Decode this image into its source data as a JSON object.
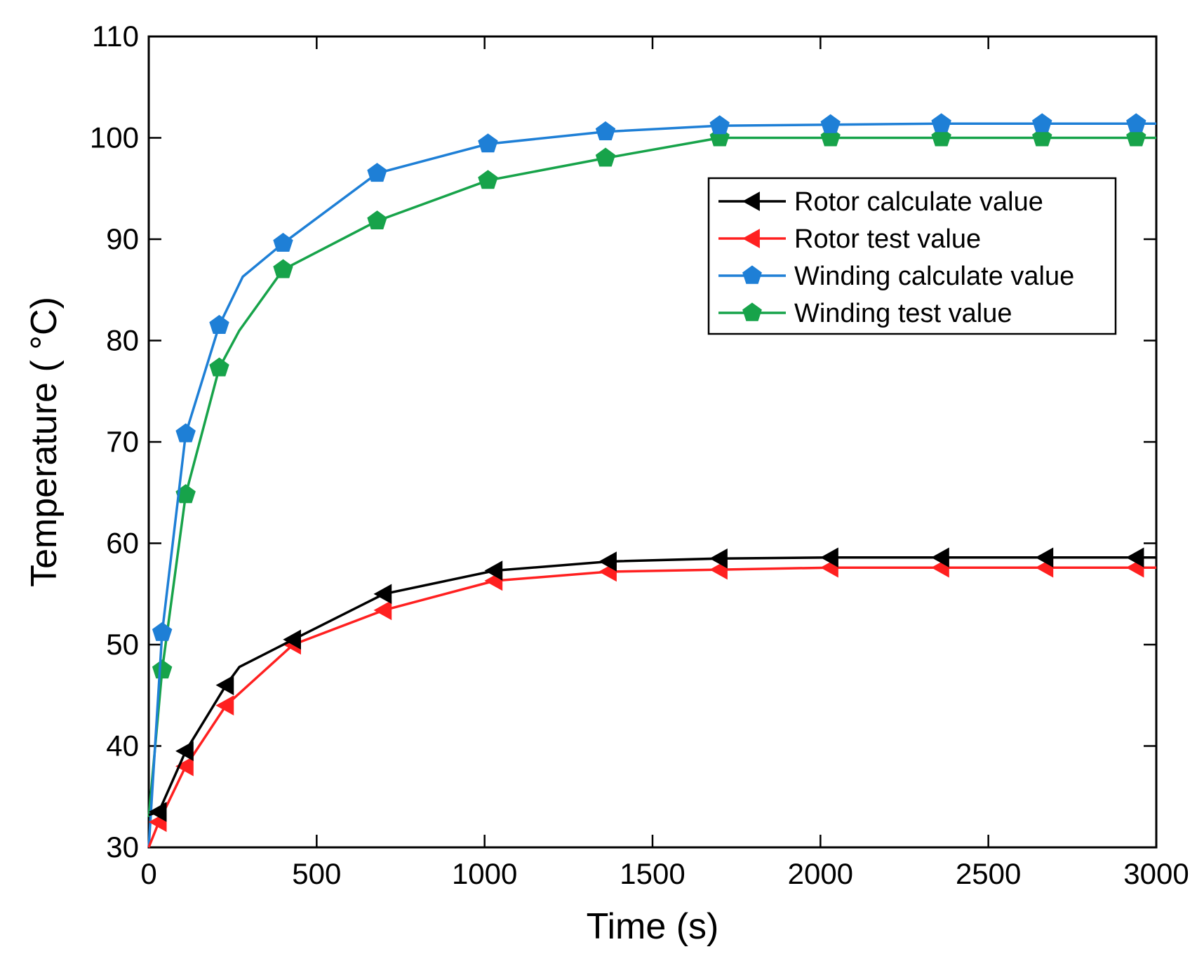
{
  "chart_data": {
    "type": "line",
    "title": "",
    "xlabel": "Time (s)",
    "ylabel": "Temperature ( °C)",
    "xlim": [
      0,
      3000
    ],
    "ylim": [
      30,
      110
    ],
    "xticks": [
      0,
      500,
      1000,
      1500,
      2000,
      2500,
      3000
    ],
    "yticks": [
      30,
      40,
      50,
      60,
      70,
      80,
      90,
      100,
      110
    ],
    "grid": false,
    "legend_position": "upper-right",
    "series": [
      {
        "name": "Rotor calculate value",
        "color": "#000000",
        "marker": "triangle-left",
        "x": [
          0,
          30,
          110,
          230,
          270,
          430,
          700,
          1030,
          1370,
          1700,
          2030,
          2360,
          2670,
          2940,
          3000
        ],
        "y": [
          33.2,
          33.5,
          39.5,
          46.0,
          47.8,
          50.5,
          55.0,
          57.3,
          58.2,
          58.5,
          58.6,
          58.6,
          58.6,
          58.6,
          58.6
        ],
        "markers_x": [
          30,
          110,
          230,
          430,
          700,
          1030,
          1370,
          1700,
          2030,
          2360,
          2670,
          2940
        ],
        "markers_y": [
          33.5,
          39.5,
          46.0,
          50.5,
          55.0,
          57.3,
          58.2,
          58.5,
          58.6,
          58.6,
          58.6,
          58.6
        ]
      },
      {
        "name": "Rotor test value",
        "color": "#ff2020",
        "marker": "triangle-left",
        "x": [
          0,
          30,
          110,
          230,
          430,
          700,
          1030,
          1370,
          1700,
          2030,
          2360,
          2670,
          2940,
          3000
        ],
        "y": [
          30.0,
          32.5,
          38.0,
          44.0,
          50.0,
          53.4,
          56.3,
          57.2,
          57.4,
          57.6,
          57.6,
          57.6,
          57.6,
          57.6
        ],
        "markers_x": [
          30,
          110,
          230,
          430,
          700,
          1030,
          1370,
          1700,
          2030,
          2360,
          2670,
          2940
        ],
        "markers_y": [
          32.5,
          38.0,
          44.0,
          50.0,
          53.4,
          56.3,
          57.2,
          57.4,
          57.6,
          57.6,
          57.6,
          57.6
        ]
      },
      {
        "name": "Winding calculate value",
        "color": "#1e7fd6",
        "marker": "pentagon",
        "x": [
          0,
          40,
          110,
          210,
          280,
          400,
          680,
          1010,
          1360,
          1700,
          2030,
          2360,
          2660,
          2940,
          3000
        ],
        "y": [
          30.0,
          51.2,
          70.8,
          81.5,
          86.3,
          89.6,
          96.5,
          99.4,
          100.6,
          101.2,
          101.3,
          101.4,
          101.4,
          101.4,
          101.4
        ],
        "markers_x": [
          40,
          110,
          210,
          400,
          680,
          1010,
          1360,
          1700,
          2030,
          2360,
          2660,
          2940
        ],
        "markers_y": [
          51.2,
          70.8,
          81.5,
          89.6,
          96.5,
          99.4,
          100.6,
          101.2,
          101.3,
          101.4,
          101.4,
          101.4
        ]
      },
      {
        "name": "Winding test value",
        "color": "#17a34a",
        "marker": "pentagon",
        "x": [
          0,
          40,
          110,
          210,
          270,
          400,
          680,
          1010,
          1360,
          1700,
          2030,
          2360,
          2660,
          2940,
          3000
        ],
        "y": [
          33.0,
          47.5,
          64.8,
          77.3,
          81.0,
          87.0,
          91.8,
          95.8,
          98.0,
          100.0,
          100.0,
          100.0,
          100.0,
          100.0,
          100.0
        ],
        "markers_x": [
          40,
          110,
          210,
          400,
          680,
          1010,
          1360,
          1700,
          2030,
          2360,
          2660,
          2940
        ],
        "markers_y": [
          47.5,
          64.8,
          77.3,
          87.0,
          91.8,
          95.8,
          98.0,
          100.0,
          100.0,
          100.0,
          100.0,
          100.0
        ]
      }
    ]
  }
}
